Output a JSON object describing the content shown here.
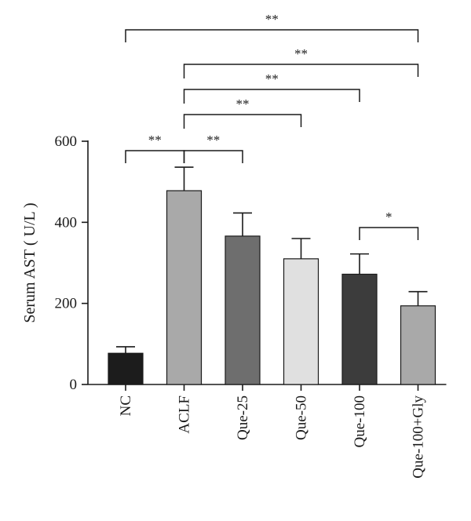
{
  "chart_data": {
    "type": "bar",
    "categories": [
      "NC",
      "ACLF",
      "Que-25",
      "Que-50",
      "Que-100",
      "Que-100+Gly"
    ],
    "values": [
      77,
      478,
      366,
      310,
      272,
      194
    ],
    "errors": [
      16,
      58,
      57,
      50,
      50,
      35
    ],
    "colors": [
      "#1c1c1c",
      "#a9a9a9",
      "#6e6e6e",
      "#e0e0e0",
      "#3c3c3c",
      "#a9a9a9"
    ],
    "ylabel": "Serum AST ( U/L )",
    "ylim": [
      0,
      600
    ],
    "yticks": [
      0,
      200,
      400,
      600
    ],
    "comparisons": [
      {
        "from": 0,
        "to": 1,
        "label": "**"
      },
      {
        "from": 1,
        "to": 2,
        "label": "**"
      },
      {
        "from": 1,
        "to": 3,
        "label": "**"
      },
      {
        "from": 1,
        "to": 4,
        "label": "**"
      },
      {
        "from": 1,
        "to": 5,
        "label": "**"
      },
      {
        "from": 0,
        "to": 5,
        "label": "**"
      },
      {
        "from": 4,
        "to": 5,
        "label": "*"
      }
    ]
  }
}
